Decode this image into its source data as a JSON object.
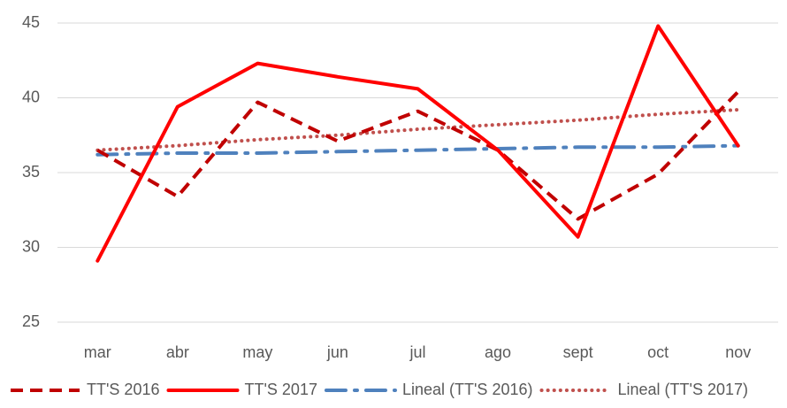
{
  "chart_data": {
    "type": "line",
    "categories": [
      "mar",
      "abr",
      "may",
      "jun",
      "jul",
      "ago",
      "sept",
      "oct",
      "nov"
    ],
    "series": [
      {
        "name": "TT'S 2016",
        "color": "#c00000",
        "dash": "dash",
        "values": [
          36.5,
          33.4,
          39.7,
          37.1,
          39.1,
          36.5,
          31.9,
          34.9,
          40.4
        ]
      },
      {
        "name": "TT'S 2017",
        "color": "#ff0000",
        "dash": "solid",
        "values": [
          29.1,
          39.4,
          42.3,
          41.4,
          40.6,
          36.5,
          30.7,
          44.8,
          36.8
        ]
      },
      {
        "name": "Lineal (TT'S 2016)",
        "color": "#4f81bd",
        "dash": "dashdot",
        "values": [
          36.2,
          36.3,
          36.3,
          36.4,
          36.5,
          36.6,
          36.7,
          36.7,
          36.8
        ]
      },
      {
        "name": "Lineal (TT'S 2017)",
        "color": "#c0504d",
        "dash": "dot",
        "values": [
          36.5,
          36.8,
          37.2,
          37.5,
          37.9,
          38.2,
          38.5,
          38.9,
          39.2
        ]
      }
    ],
    "ylim": [
      25,
      45
    ],
    "yticks": [
      25,
      30,
      35,
      40,
      45
    ],
    "grid": true,
    "legend": "bottom"
  }
}
